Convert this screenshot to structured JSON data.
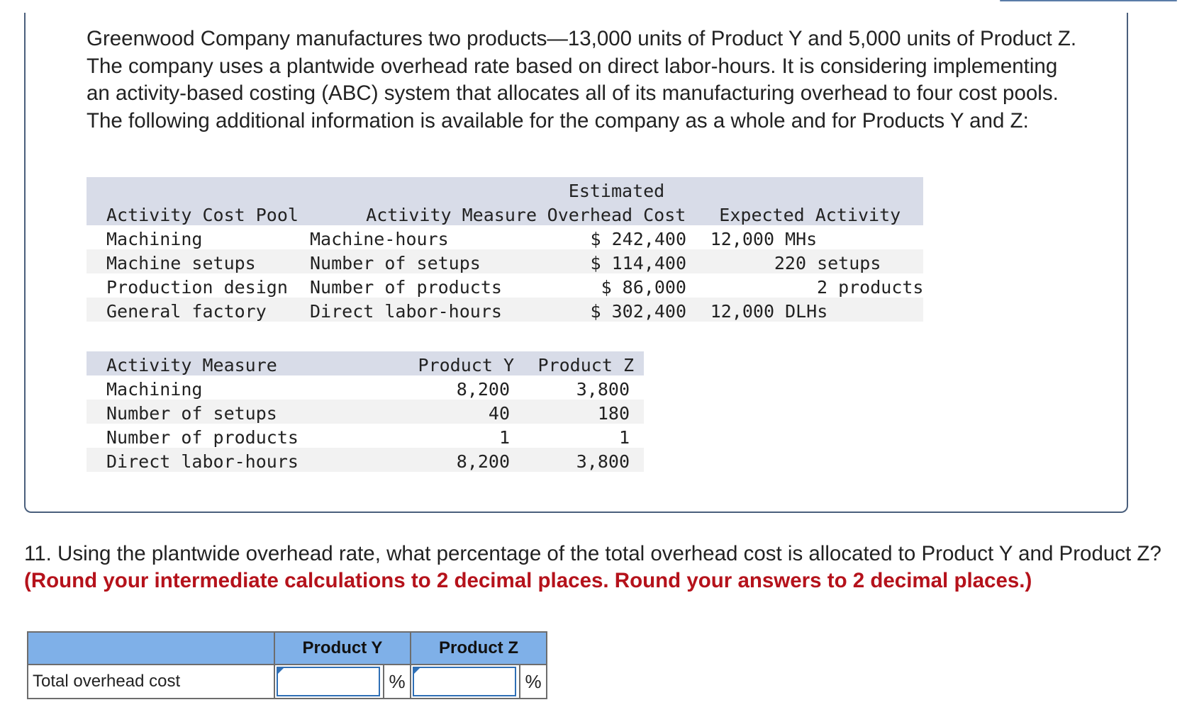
{
  "intro_text": "Greenwood Company manufactures two products—13,000 units of Product Y and 5,000 units of Product Z. The company uses a plantwide overhead rate based on direct labor-hours. It is considering implementing an activity-based costing (ABC) system that allocates all of its manufacturing overhead to four cost pools. The following additional information is available for the company as a whole and for Products Y and Z:",
  "table1": {
    "header_top": "Estimated",
    "headers": [
      "Activity Cost Pool",
      "Activity Measure",
      "Overhead Cost",
      "Expected Activity"
    ],
    "rows": [
      {
        "pool": "Machining",
        "measure": "Machine-hours",
        "cost": "$ 242,400",
        "qty": "12,000",
        "unit": "MHs"
      },
      {
        "pool": "Machine setups",
        "measure": "Number of setups",
        "cost": "$ 114,400",
        "qty": "220",
        "unit": "setups"
      },
      {
        "pool": "Production design",
        "measure": "Number of products",
        "cost": "$ 86,000",
        "qty": "2",
        "unit": "products"
      },
      {
        "pool": "General factory",
        "measure": "Direct labor-hours",
        "cost": "$ 302,400",
        "qty": "12,000",
        "unit": "DLHs"
      }
    ]
  },
  "table2": {
    "headers": [
      "Activity Measure",
      "Product Y",
      "Product Z"
    ],
    "rows": [
      {
        "measure": "Machining",
        "y": "8,200",
        "z": "3,800"
      },
      {
        "measure": "Number of setups",
        "y": "40",
        "z": "180"
      },
      {
        "measure": "Number of products",
        "y": "1",
        "z": "1"
      },
      {
        "measure": "Direct labor-hours",
        "y": "8,200",
        "z": "3,800"
      }
    ]
  },
  "question": {
    "text": "11. Using the plantwide overhead rate, what percentage of the total overhead cost is allocated to Product Y and Product Z?",
    "instruction": "(Round your intermediate calculations to 2 decimal places. Round your answers to 2 decimal places.)"
  },
  "answer_table": {
    "col_y": "Product Y",
    "col_z": "Product Z",
    "row_label": "Total overhead cost",
    "input_y_value": "",
    "input_z_value": "",
    "percent_sign": "%"
  }
}
